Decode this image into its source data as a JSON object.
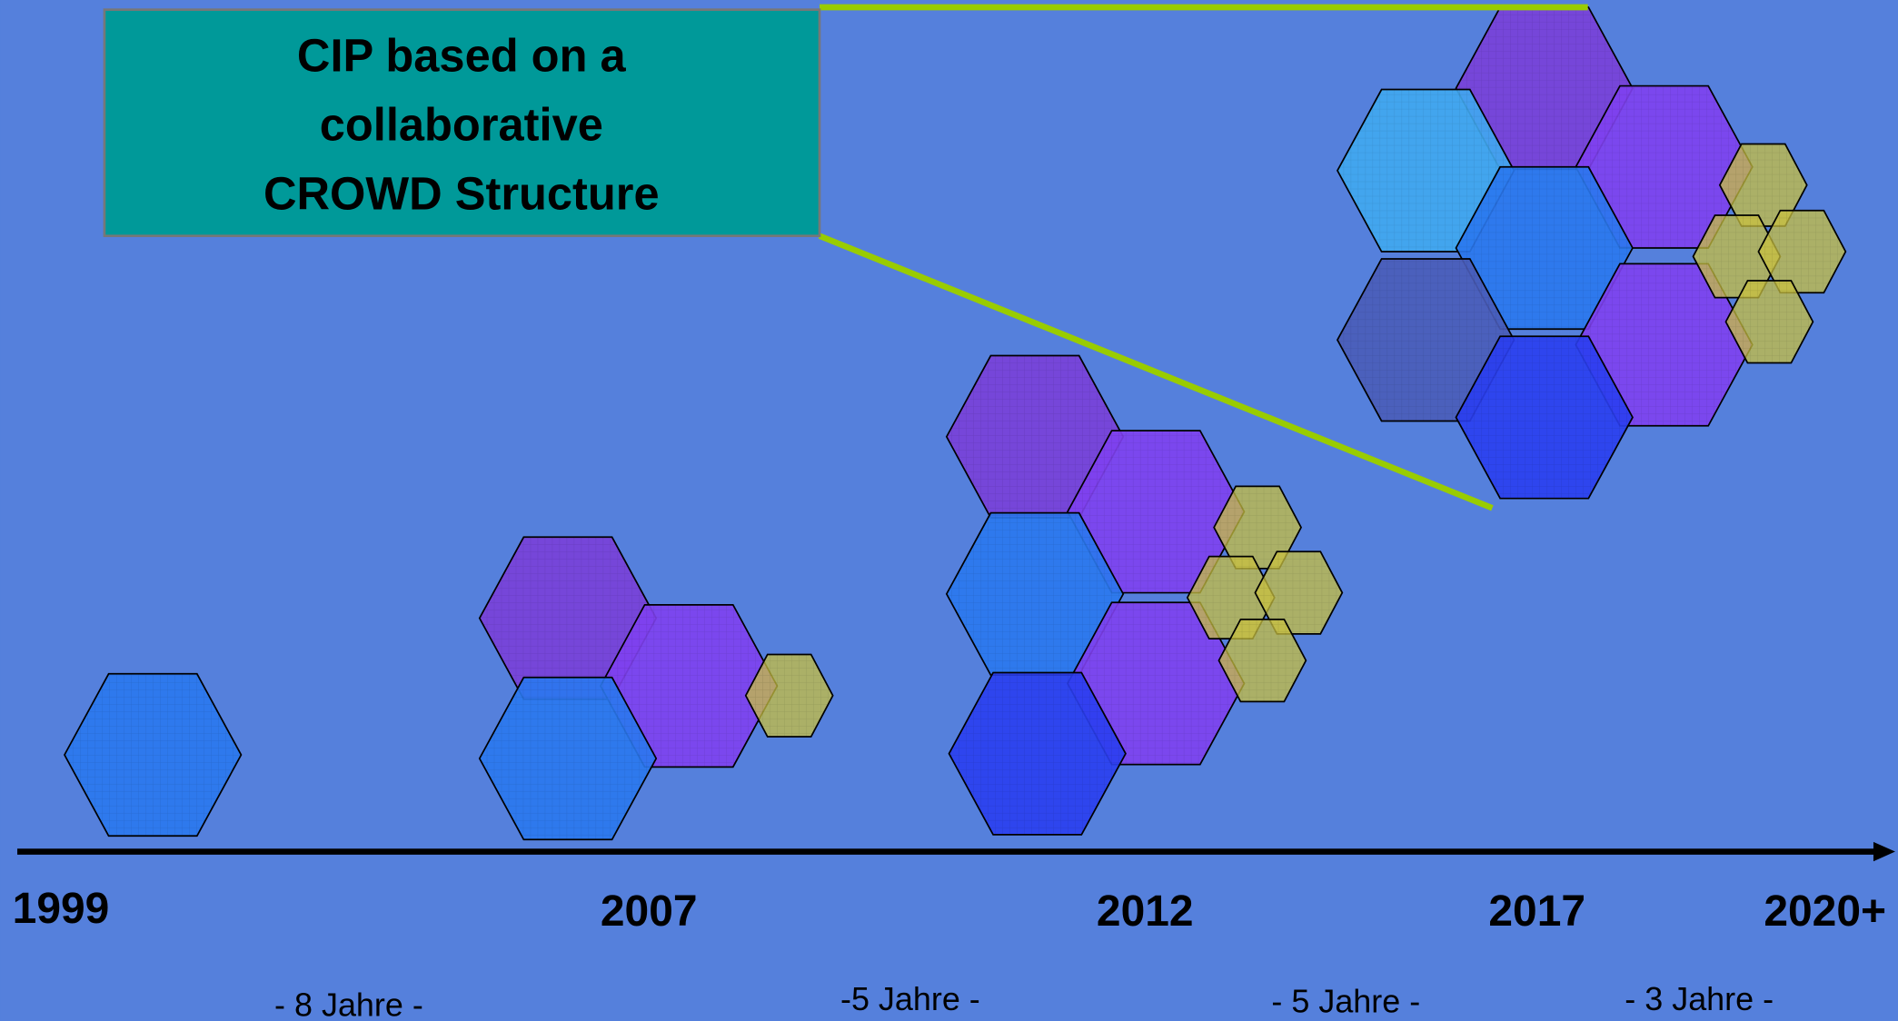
{
  "title_box": {
    "lines": [
      "CIP based on a",
      "collaborative",
      "CROWD Structure"
    ]
  },
  "timeline": {
    "years": [
      "1999",
      "2007",
      "2012",
      "2017",
      "2020+"
    ],
    "durations": [
      "- 8 Jahre -",
      "-5 Jahre -",
      "- 5 Jahre -",
      "- 3 Jahre -"
    ]
  }
}
